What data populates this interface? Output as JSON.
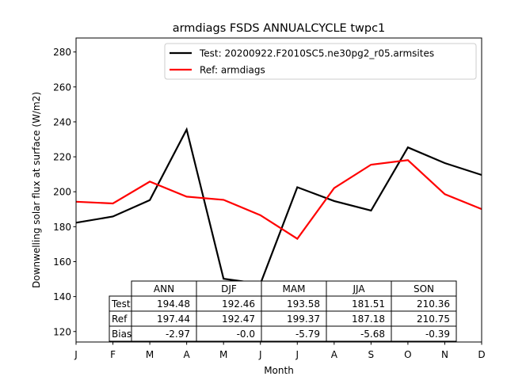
{
  "chart_data": {
    "type": "line",
    "title": "armdiags FSDS ANNUALCYCLE twpc1",
    "xlabel": "Month",
    "ylabel": "Downwelling solar flux at surface (W/m2)",
    "categories": [
      "J",
      "F",
      "M",
      "A",
      "M",
      "J",
      "J",
      "A",
      "S",
      "O",
      "N",
      "D"
    ],
    "ylim": [
      114,
      288
    ],
    "yticks": [
      120,
      140,
      160,
      180,
      200,
      220,
      240,
      260,
      280
    ],
    "grid": false,
    "legend_position": "top-right",
    "series": [
      {
        "name": "Test: 20200922.F2010SC5.ne30pg2_r05.armsites",
        "color": "#000000",
        "values": [
          182.3,
          185.8,
          195.2,
          235.6,
          150.2,
          147.3,
          202.6,
          194.7,
          189.2,
          225.4,
          216.4,
          209.6
        ]
      },
      {
        "name": "Ref: armdiags",
        "color": "#ff0000",
        "values": [
          194.3,
          193.3,
          205.8,
          197.2,
          195.4,
          186.6,
          173.1,
          202.1,
          215.5,
          218.1,
          198.6,
          190.1
        ]
      }
    ],
    "table": {
      "col_labels": [
        "ANN",
        "DJF",
        "MAM",
        "JJA",
        "SON"
      ],
      "rows": [
        {
          "label": "Test",
          "values": [
            "194.48",
            "192.46",
            "193.58",
            "181.51",
            "210.36"
          ]
        },
        {
          "label": "Ref",
          "values": [
            "197.44",
            "192.47",
            "199.37",
            "187.18",
            "210.75"
          ]
        },
        {
          "label": "Bias",
          "values": [
            "-2.97",
            "-0.0",
            "-5.79",
            "-5.68",
            "-0.39"
          ]
        }
      ]
    }
  }
}
